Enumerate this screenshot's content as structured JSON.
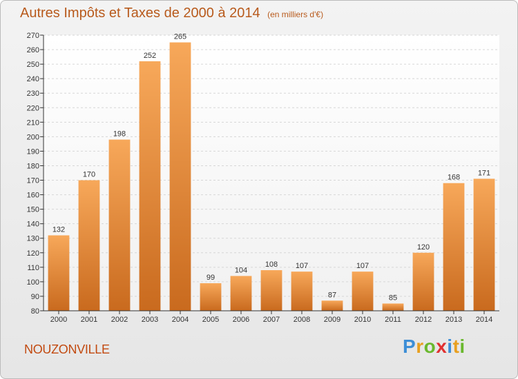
{
  "header": {
    "title": "Autres Impôts et Taxes de 2000 à 2014",
    "unit": "(en milliers d'€)"
  },
  "footer": {
    "commune": "NOUZONVILLE",
    "brand_letters": [
      "P",
      "r",
      "o",
      "x",
      "i",
      "t",
      "i"
    ],
    "brand_colors": [
      "#3d8ed6",
      "#e8a020",
      "#6ab82e",
      "#e03030",
      "#3d8ed6",
      "#e8a020",
      "#6ab82e"
    ]
  },
  "colors": {
    "bar_top": "#f7a85a",
    "bar_bottom": "#c96a1e",
    "text": "#b85a1c",
    "axis": "#333333"
  },
  "chart_data": {
    "type": "bar",
    "categories": [
      "2000",
      "2001",
      "2002",
      "2003",
      "2004",
      "2005",
      "2006",
      "2007",
      "2008",
      "2009",
      "2010",
      "2011",
      "2012",
      "2013",
      "2014"
    ],
    "values": [
      132,
      170,
      198,
      252,
      265,
      99,
      104,
      108,
      107,
      87,
      107,
      85,
      120,
      168,
      171
    ],
    "title": "Autres Impôts et Taxes de 2000 à 2014",
    "xlabel": "",
    "ylabel": "",
    "ylim": [
      80,
      270
    ],
    "yticks": [
      80,
      90,
      100,
      110,
      120,
      130,
      140,
      150,
      160,
      170,
      180,
      190,
      200,
      210,
      220,
      230,
      240,
      250,
      260,
      270
    ],
    "grid": true,
    "data_labels": true
  }
}
